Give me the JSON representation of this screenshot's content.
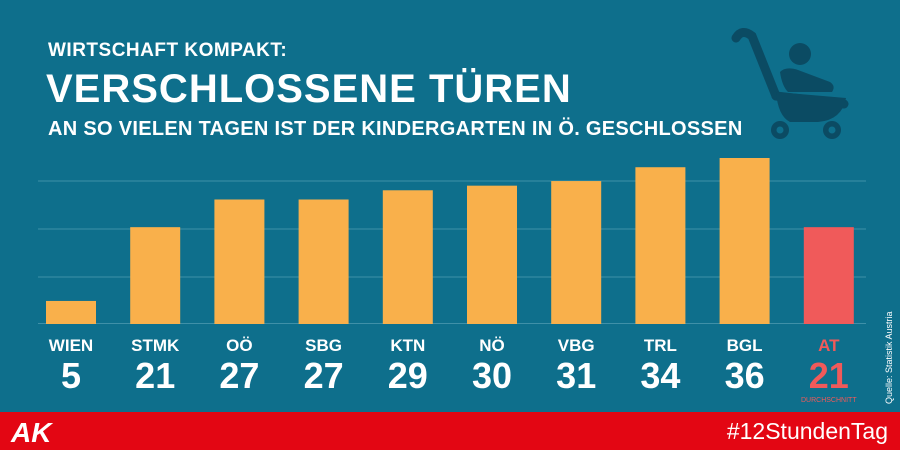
{
  "header": {
    "kicker": "WIRTSCHAFT KOMPAKT:",
    "title": "VERSCHLOSSENE TÜREN",
    "subtitle": "AN SO VIELEN TAGEN IST DER KINDERGARTEN IN Ö. GESCHLOSSEN"
  },
  "source": "Quelle: Statistik Austria",
  "footer": {
    "logo_text": "AK",
    "hashtag": "#12StundenTag"
  },
  "colors": {
    "background": "#0e6f8c",
    "bar": "#f9b04b",
    "highlight": "#f05a5a",
    "footer": "#e30613",
    "grid": "#3f90a8",
    "icon": "#0b4b63"
  },
  "icons": {
    "decoration": "baby-stroller-icon"
  },
  "chart_data": {
    "type": "bar",
    "categories": [
      "WIEN",
      "STMK",
      "OÖ",
      "SBG",
      "KTN",
      "NÖ",
      "VBG",
      "TRL",
      "BGL",
      "AT"
    ],
    "values": [
      5,
      21,
      27,
      27,
      29,
      30,
      31,
      34,
      36,
      21
    ],
    "highlight_category": "AT",
    "highlight_note": "DURCHSCHNITT",
    "ylim": [
      0,
      36
    ],
    "grid": true,
    "title": "VERSCHLOSSENE TÜREN",
    "xlabel": "",
    "ylabel": ""
  }
}
